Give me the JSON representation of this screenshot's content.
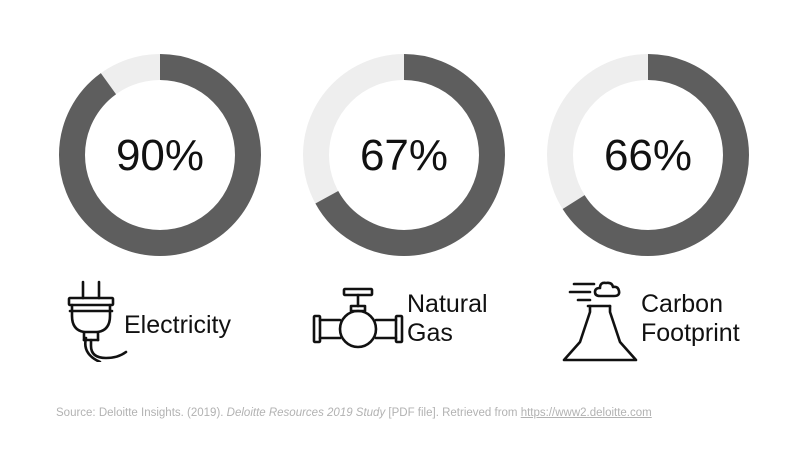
{
  "chart_data": {
    "type": "pie",
    "style": "donut",
    "colors": {
      "filled": "#5e5e5e",
      "remainder": "#eeeeee",
      "text": "#111111"
    },
    "items": [
      {
        "label": "Electricity",
        "value": 90,
        "display": "90%",
        "icon": "electric-plug-icon"
      },
      {
        "label": "Natural Gas",
        "value": 67,
        "display": "67%",
        "icon": "gas-pipe-valve-icon"
      },
      {
        "label": "Carbon Footprint",
        "value": 66,
        "display": "66%",
        "icon": "volcano-emissions-icon"
      }
    ]
  },
  "labels": {
    "electricity": [
      "Electricity"
    ],
    "natural_gas": [
      "Natural",
      "Gas"
    ],
    "carbon": [
      "Carbon",
      "Footprint"
    ]
  },
  "source": {
    "prefix": "Source: Deloitte Insights. (2019). ",
    "title": "Deloitte Resources 2019 Study",
    "middle": " [PDF file]. Retrieved from ",
    "link": "https://www2.deloitte.com"
  }
}
